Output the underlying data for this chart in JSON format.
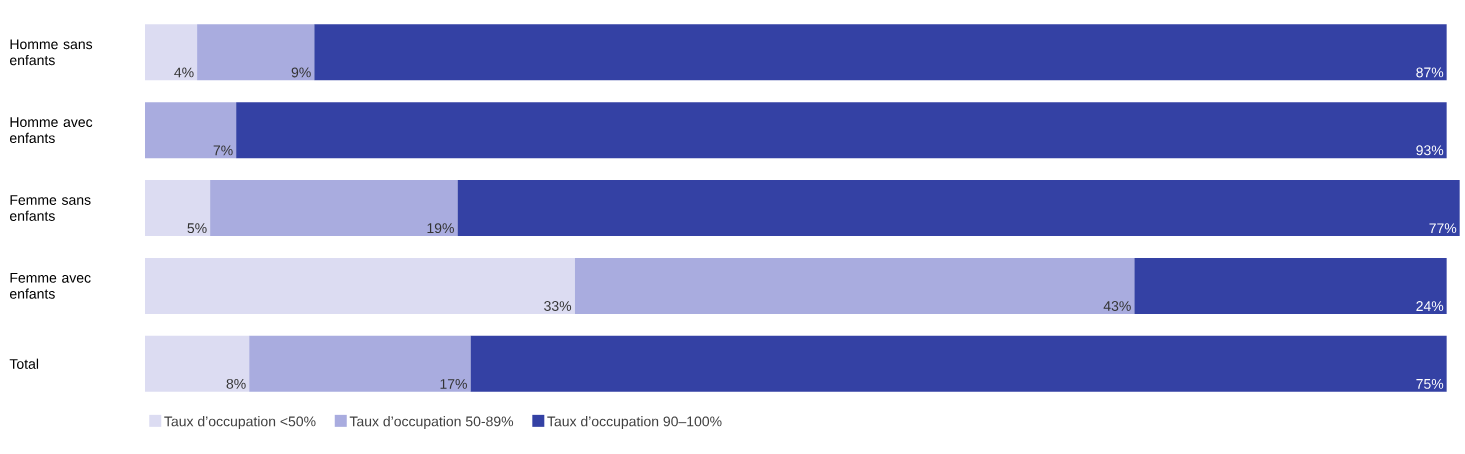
{
  "chart_data": {
    "type": "bar",
    "orientation": "horizontal",
    "stacked": true,
    "categories": [
      "Homme sans enfants",
      "Homme avec enfants",
      "Femme sans enfants",
      "Femme avec enfants",
      "Total"
    ],
    "series": [
      {
        "name": "Taux d’occupation <50%",
        "color": "#dcdcf2",
        "values": [
          4,
          0,
          5,
          33,
          8
        ],
        "value_labels": [
          "4%",
          null,
          "5%",
          "33%",
          "8%"
        ]
      },
      {
        "name": "Taux d’occupation 50-89%",
        "color": "#a9acdf",
        "values": [
          9,
          7,
          19,
          43,
          17
        ],
        "value_labels": [
          "9%",
          "7%",
          "19%",
          "43%",
          "17%"
        ]
      },
      {
        "name": "Taux d’occupation 90–100%",
        "color": "#3441a4",
        "values": [
          87,
          93,
          77,
          24,
          75
        ],
        "value_labels": [
          "87%",
          "93%",
          "77%",
          "24%",
          "75%"
        ]
      }
    ],
    "legend": "bottom left"
  }
}
